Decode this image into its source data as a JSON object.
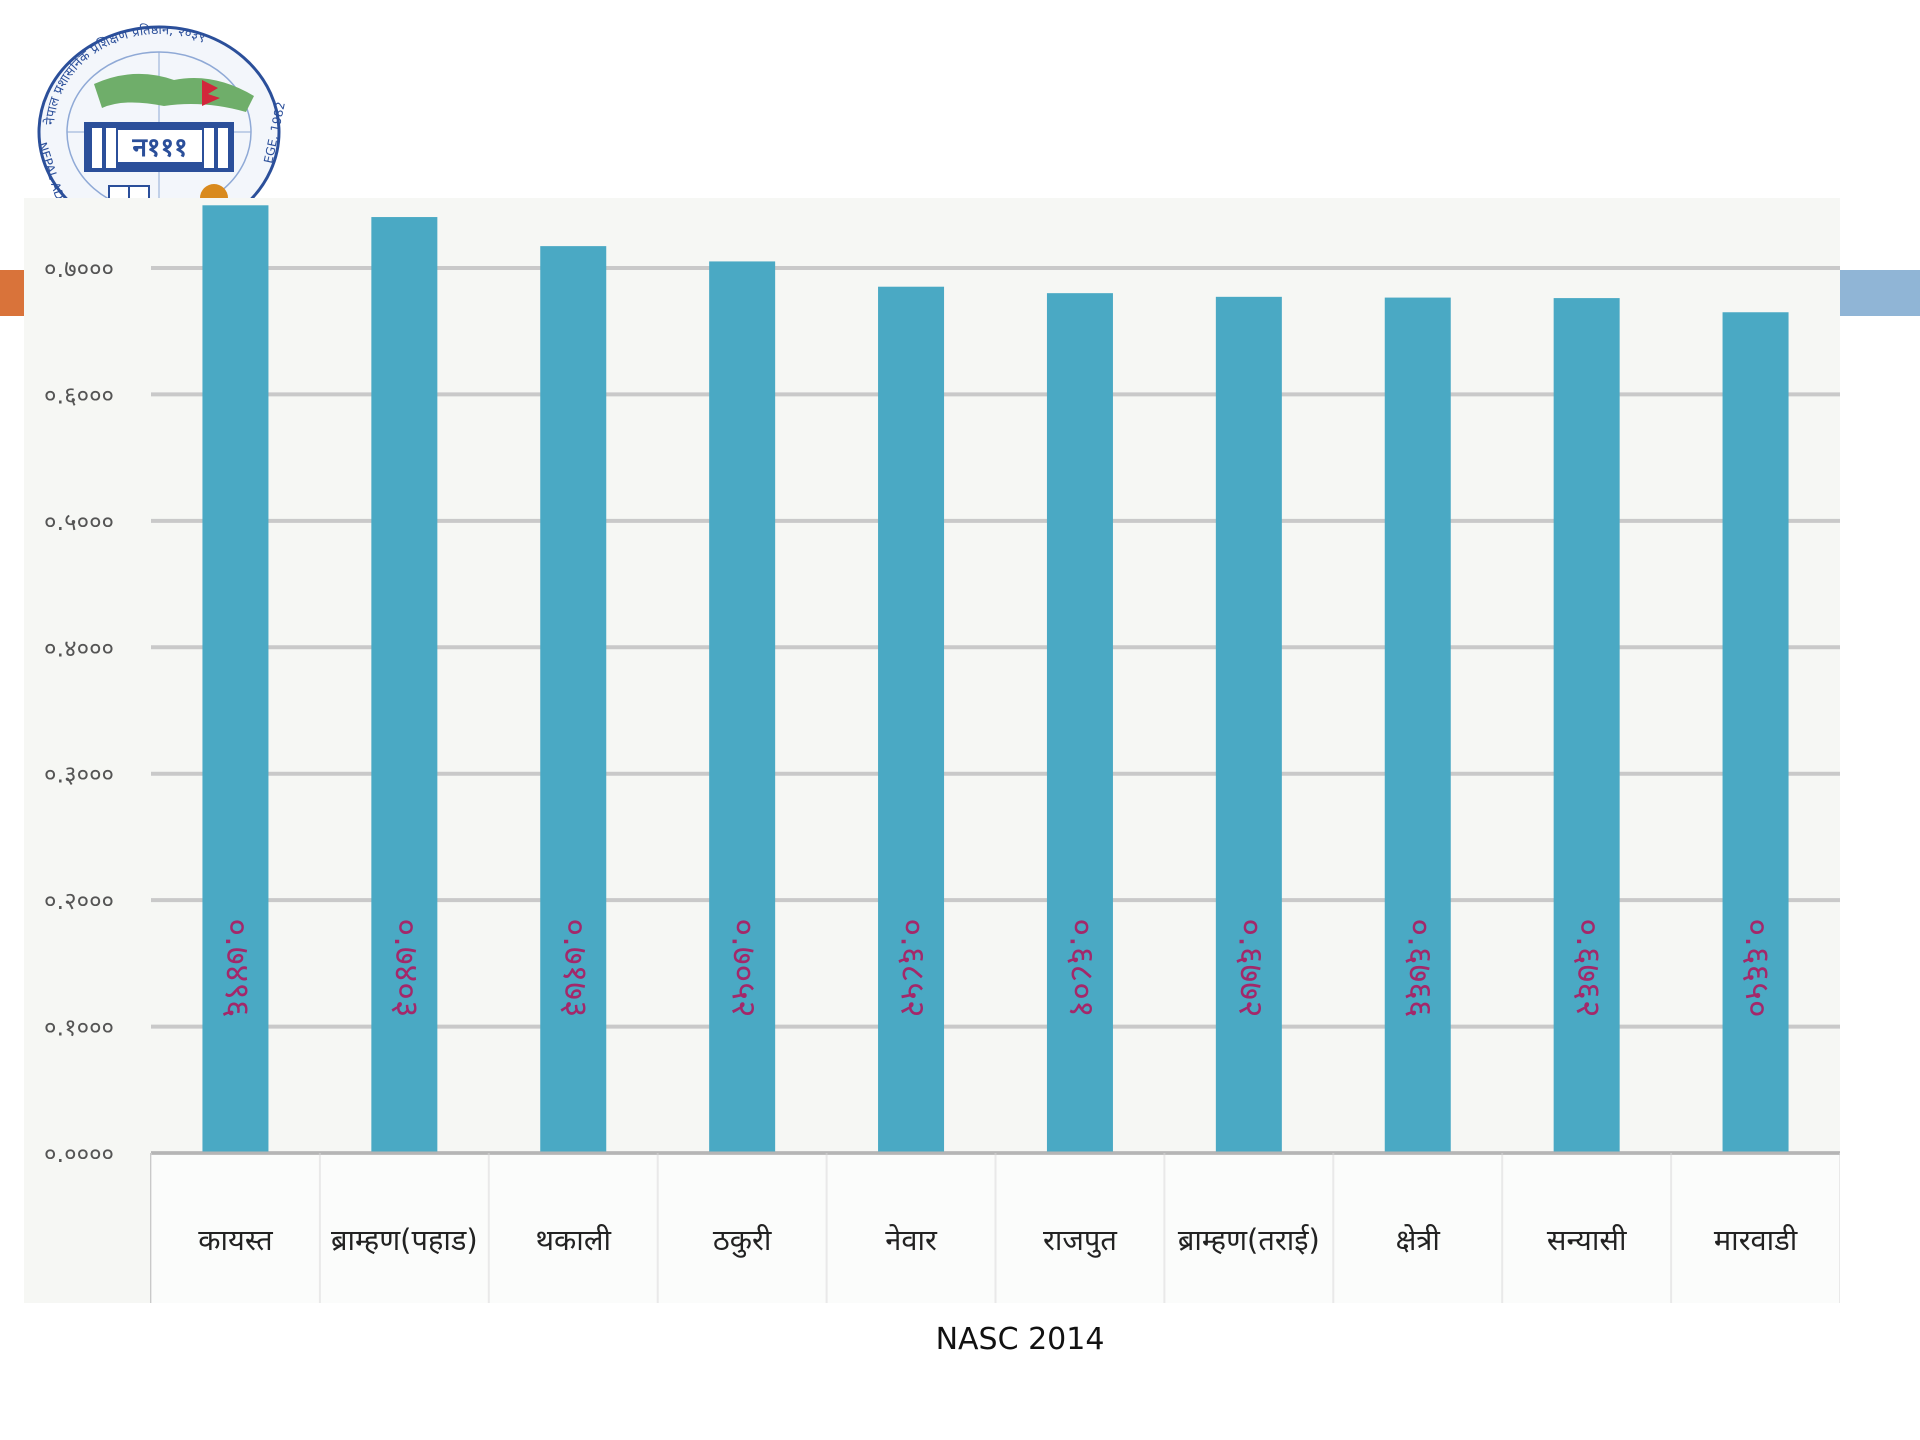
{
  "slide": {
    "footer": "NASC 2014",
    "accent_left_color": "#d9733a",
    "accent_right_color": "#90b5d6"
  },
  "logo": {
    "arc_text": "नेपाल प्रशासनिक प्रशिक्षण प्रतिष्ठान, २०३९",
    "emblem_text": "न१११",
    "side_text_left": "NEPAL AD",
    "side_text_right": "EGE, 1982"
  },
  "chart_data": {
    "type": "bar",
    "categories": [
      "कायस्त",
      "ब्राम्हण(पहाड)",
      "थकाली",
      "ठकुरी",
      "नेवार",
      "राजपुत",
      "ब्राम्हण(तराई)",
      "क्षेत्री",
      "सन्यासी",
      "मारवाडी"
    ],
    "values": [
      0.7496,
      0.7403,
      0.7173,
      0.7052,
      0.6852,
      0.6801,
      0.6772,
      0.6766,
      0.6762,
      0.665
    ],
    "data_labels": [
      "०.७४९६",
      "०.७४०३",
      "०.७१७३",
      "०.७०५२",
      "०.६८५२",
      "०.६८०१",
      "०.६७७२",
      "०.६७६६",
      "०.६७६२",
      "०.६६५०"
    ],
    "y_ticks": [
      "०.००००",
      "०.१०००",
      "०.२०००",
      "०.३०००",
      "०.४०००",
      "०.५०००",
      "०.६०००",
      "०.७०००"
    ],
    "ylim": [
      0,
      0.7
    ],
    "grid": true,
    "bar_color": "#4aa9c4",
    "label_color": "#a3286a"
  }
}
